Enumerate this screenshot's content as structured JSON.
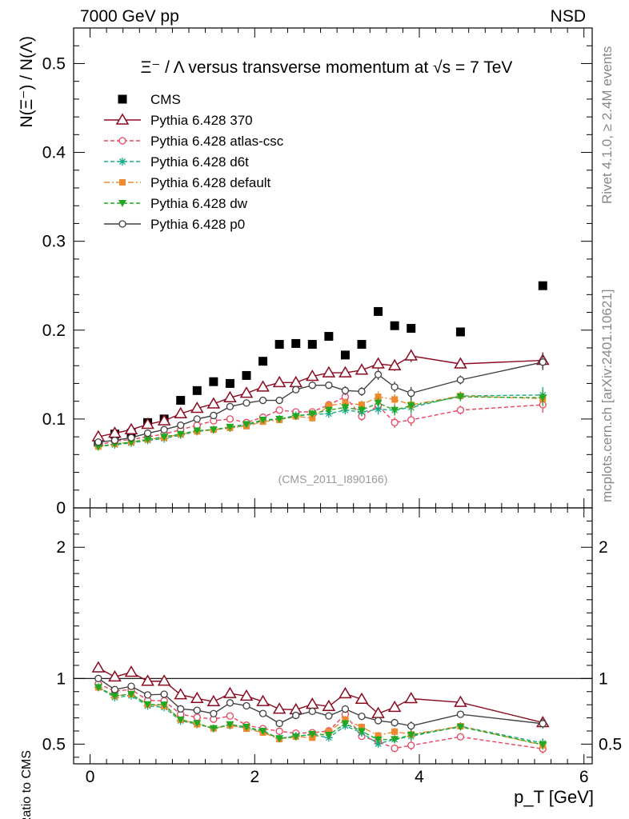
{
  "header": {
    "left": "7000 GeV pp",
    "right": "NSD"
  },
  "side_labels": {
    "rivet": "Rivet 4.1.0, ≥ 2.4M events",
    "mcplots": "mcplots.cern.ch [arXiv:2401.10621]"
  },
  "watermark": "(CMS_2011_I890166)",
  "chart_data": {
    "type": "scatter",
    "title": "Ξ⁻ / Λ versus transverse momentum at √s = 7 TeV",
    "ylabel": "N(Ξ⁻) / N(Λ)",
    "xlabel": "p_T [GeV]",
    "xlim": [
      -0.2,
      6.1
    ],
    "ylim": [
      0,
      0.54
    ],
    "x_ticks": [
      "0",
      "2",
      "4",
      "6"
    ],
    "y_ticks": [
      "0",
      "0.1",
      "0.2",
      "0.3",
      "0.4",
      "0.5"
    ],
    "ratio_panel": {
      "ylabel": "Ratio to CMS",
      "ylim": [
        0.35,
        2.3
      ],
      "y_ticks": [
        "0.5",
        "1",
        "2"
      ]
    },
    "x": [
      0.1,
      0.3,
      0.5,
      0.7,
      0.9,
      1.1,
      1.3,
      1.5,
      1.7,
      1.9,
      2.1,
      2.3,
      2.5,
      2.7,
      2.9,
      3.1,
      3.3,
      3.5,
      3.7,
      3.9,
      4.5,
      5.5
    ],
    "series": [
      {
        "name": "CMS",
        "color": "#000000",
        "values": [
          0.074,
          0.083,
          0.084,
          0.096,
          0.1,
          0.121,
          0.132,
          0.142,
          0.14,
          0.149,
          0.165,
          0.184,
          0.185,
          0.184,
          0.193,
          0.172,
          0.184,
          0.221,
          0.205,
          0.202,
          0.198,
          0.25
        ]
      },
      {
        "name": "Pythia 6.428 370",
        "color": "#8b0a1f",
        "values": [
          0.08,
          0.084,
          0.088,
          0.094,
          0.098,
          0.106,
          0.112,
          0.117,
          0.124,
          0.129,
          0.136,
          0.141,
          0.141,
          0.148,
          0.152,
          0.152,
          0.155,
          0.162,
          0.16,
          0.171,
          0.162,
          0.166
        ],
        "errors": [
          0.001,
          0.001,
          0.001,
          0.001,
          0.001,
          0.002,
          0.002,
          0.002,
          0.002,
          0.003,
          0.003,
          0.003,
          0.003,
          0.004,
          0.004,
          0.005,
          0.005,
          0.006,
          0.006,
          0.007,
          0.005,
          0.009
        ]
      },
      {
        "name": "Pythia 6.428 atlas-csc",
        "color": "#e8435f",
        "values": [
          0.071,
          0.075,
          0.077,
          0.08,
          0.083,
          0.088,
          0.093,
          0.098,
          0.1,
          0.096,
          0.102,
          0.11,
          0.108,
          0.108,
          0.116,
          0.125,
          0.103,
          0.115,
          0.096,
          0.099,
          0.11,
          0.116
        ],
        "errors": [
          0.001,
          0.001,
          0.001,
          0.001,
          0.001,
          0.002,
          0.002,
          0.002,
          0.002,
          0.003,
          0.003,
          0.003,
          0.003,
          0.004,
          0.004,
          0.005,
          0.005,
          0.006,
          0.006,
          0.007,
          0.005,
          0.009
        ]
      },
      {
        "name": "Pythia 6.428 d6t",
        "color": "#1aaa8a",
        "values": [
          0.069,
          0.071,
          0.073,
          0.076,
          0.078,
          0.082,
          0.086,
          0.088,
          0.09,
          0.093,
          0.098,
          0.1,
          0.104,
          0.105,
          0.106,
          0.11,
          0.108,
          0.111,
          0.11,
          0.113,
          0.126,
          0.127
        ],
        "errors": [
          0.001,
          0.001,
          0.001,
          0.001,
          0.001,
          0.002,
          0.002,
          0.002,
          0.002,
          0.003,
          0.003,
          0.003,
          0.003,
          0.004,
          0.004,
          0.005,
          0.005,
          0.006,
          0.006,
          0.007,
          0.005,
          0.009
        ]
      },
      {
        "name": "Pythia 6.428 default",
        "color": "#f08a30",
        "values": [
          0.069,
          0.072,
          0.074,
          0.077,
          0.079,
          0.083,
          0.086,
          0.088,
          0.09,
          0.092,
          0.097,
          0.099,
          0.103,
          0.101,
          0.115,
          0.118,
          0.116,
          0.125,
          0.122,
          0.116,
          0.126,
          0.123
        ],
        "errors": [
          0.001,
          0.001,
          0.001,
          0.001,
          0.001,
          0.002,
          0.002,
          0.002,
          0.002,
          0.003,
          0.003,
          0.003,
          0.003,
          0.004,
          0.004,
          0.005,
          0.005,
          0.006,
          0.006,
          0.007,
          0.005,
          0.009
        ]
      },
      {
        "name": "Pythia 6.428 dw",
        "color": "#22a822",
        "values": [
          0.069,
          0.072,
          0.074,
          0.077,
          0.08,
          0.083,
          0.087,
          0.088,
          0.091,
          0.094,
          0.099,
          0.1,
          0.103,
          0.106,
          0.11,
          0.113,
          0.11,
          0.118,
          0.11,
          0.115,
          0.125,
          0.124
        ],
        "errors": [
          0.001,
          0.001,
          0.001,
          0.001,
          0.001,
          0.002,
          0.002,
          0.002,
          0.002,
          0.003,
          0.003,
          0.003,
          0.003,
          0.004,
          0.004,
          0.005,
          0.005,
          0.006,
          0.006,
          0.007,
          0.005,
          0.009
        ]
      },
      {
        "name": "Pythia 6.428 p0",
        "color": "#404040",
        "values": [
          0.074,
          0.076,
          0.079,
          0.084,
          0.088,
          0.093,
          0.1,
          0.104,
          0.114,
          0.118,
          0.121,
          0.121,
          0.133,
          0.138,
          0.138,
          0.132,
          0.131,
          0.15,
          0.136,
          0.129,
          0.144,
          0.164
        ],
        "errors": [
          0.001,
          0.001,
          0.001,
          0.001,
          0.001,
          0.002,
          0.002,
          0.002,
          0.002,
          0.003,
          0.003,
          0.003,
          0.003,
          0.004,
          0.004,
          0.005,
          0.005,
          0.006,
          0.006,
          0.007,
          0.005,
          0.009
        ]
      }
    ]
  }
}
